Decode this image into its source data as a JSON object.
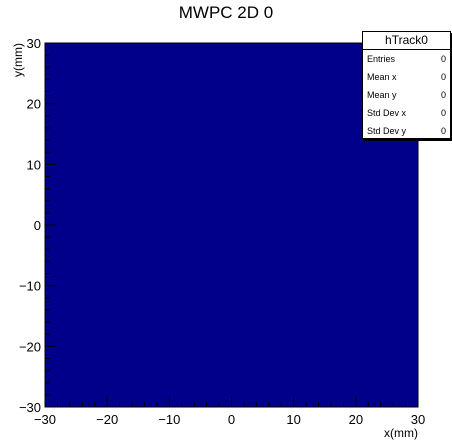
{
  "chart_data": {
    "type": "heatmap",
    "title": "MWPC 2D 0",
    "xlabel": "x(mm)",
    "ylabel": "y(mm)",
    "xlim": [
      -30,
      30
    ],
    "ylim": [
      -30,
      30
    ],
    "x_ticks": [
      -30,
      -20,
      -10,
      0,
      10,
      20,
      30
    ],
    "y_ticks": [
      -30,
      -20,
      -10,
      0,
      10,
      20,
      30
    ],
    "x_tick_labels": [
      "−30",
      "−20",
      "−10",
      "0",
      "10",
      "20",
      "30"
    ],
    "y_tick_labels": [
      "−30",
      "−20",
      "−10",
      "0",
      "10",
      "20",
      "30"
    ],
    "grid": false,
    "fill_color": "#00008b",
    "stats_box": {
      "name": "hTrack0",
      "placement": "top-right",
      "rows": [
        {
          "label": "Entries",
          "value": "0"
        },
        {
          "label": "Mean x",
          "value": "0"
        },
        {
          "label": "Mean y",
          "value": "0"
        },
        {
          "label": "Std Dev x",
          "value": "0"
        },
        {
          "label": "Std Dev y",
          "value": "0"
        }
      ]
    }
  }
}
